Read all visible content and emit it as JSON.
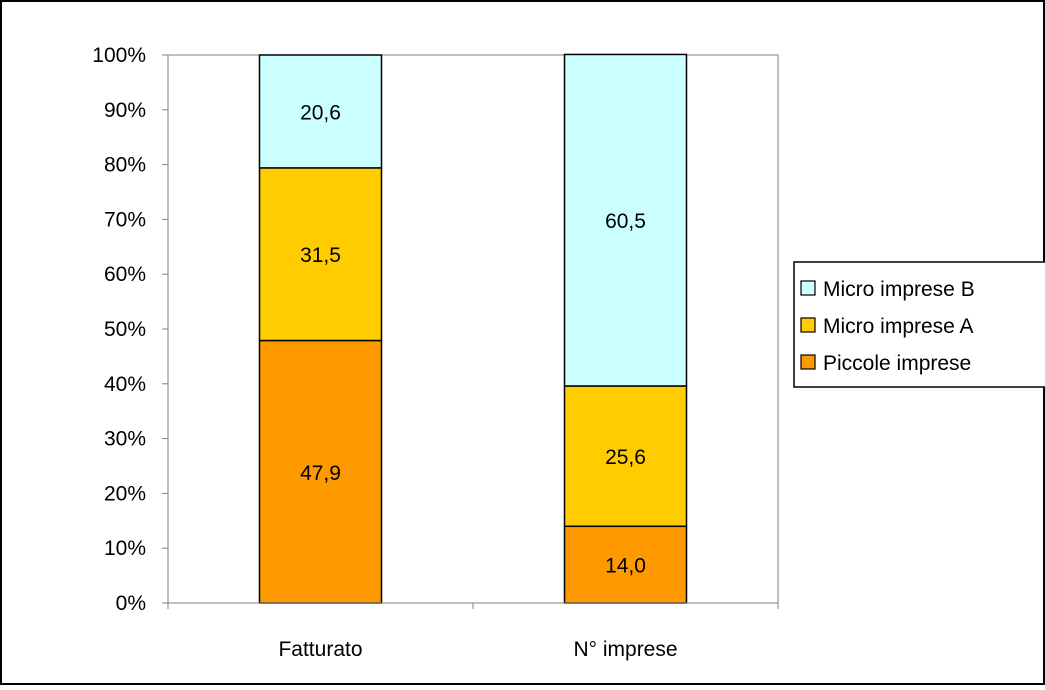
{
  "chart_data": {
    "type": "bar",
    "stacked": "percent",
    "categories": [
      "Fatturato",
      "N° imprese"
    ],
    "series": [
      {
        "name": "Piccole imprese",
        "values": [
          47.9,
          14.0
        ],
        "labels": [
          "47,9",
          "14,0"
        ],
        "color": "#FF9900"
      },
      {
        "name": "Micro imprese A",
        "values": [
          31.5,
          25.6
        ],
        "labels": [
          "31,5",
          "25,6"
        ],
        "color": "#FFCC00"
      },
      {
        "name": "Micro imprese B",
        "values": [
          20.6,
          60.5
        ],
        "labels": [
          "20,6",
          "60,5"
        ],
        "color": "#CCFFFF"
      }
    ],
    "ylim": [
      0,
      100
    ],
    "y_ticks": [
      "0%",
      "10%",
      "20%",
      "30%",
      "40%",
      "50%",
      "60%",
      "70%",
      "80%",
      "90%",
      "100%"
    ],
    "legend_position": "right",
    "legend_order": [
      "Micro imprese B",
      "Micro imprese A",
      "Piccole imprese"
    ],
    "grid": false,
    "plot_background": "#ffffff",
    "axis_color": "#808080",
    "bar_stroke": "#000000"
  }
}
